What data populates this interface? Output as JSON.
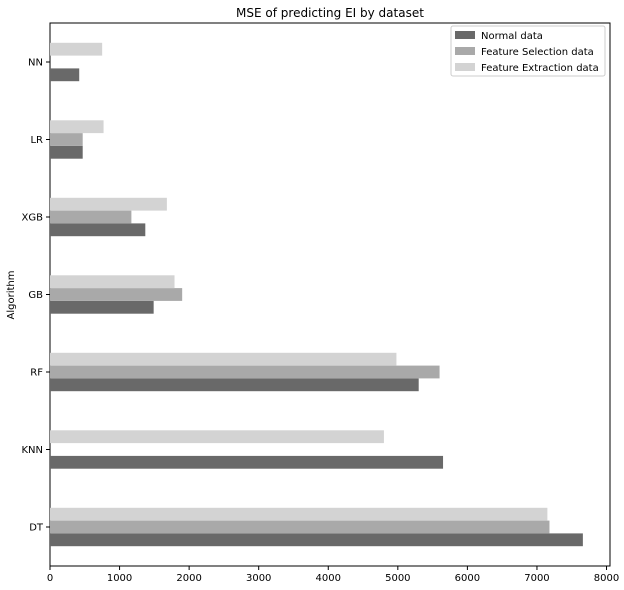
{
  "chart_data": {
    "type": "bar",
    "orientation": "horizontal",
    "title": "MSE of predicting EI by dataset",
    "xlabel": "",
    "ylabel": "Algorithm",
    "categories": [
      "DT",
      "KNN",
      "RF",
      "GB",
      "XGB",
      "LR",
      "NN"
    ],
    "xlim": [
      0,
      8050
    ],
    "xticks": [
      0,
      1000,
      2000,
      3000,
      4000,
      5000,
      6000,
      7000,
      8000
    ],
    "grid": false,
    "legend_position": "top-right",
    "series": [
      {
        "name": "Normal data",
        "color": "#696969",
        "values": [
          7660,
          5650,
          5300,
          1490,
          1370,
          470,
          420
        ]
      },
      {
        "name": "Feature Selection data",
        "color": "#a9a9a9",
        "values": [
          7180,
          0,
          5600,
          1900,
          1170,
          470,
          0
        ]
      },
      {
        "name": "Feature Extraction data",
        "color": "#d3d3d3",
        "values": [
          7150,
          4800,
          4980,
          1790,
          1680,
          770,
          750
        ]
      }
    ]
  }
}
